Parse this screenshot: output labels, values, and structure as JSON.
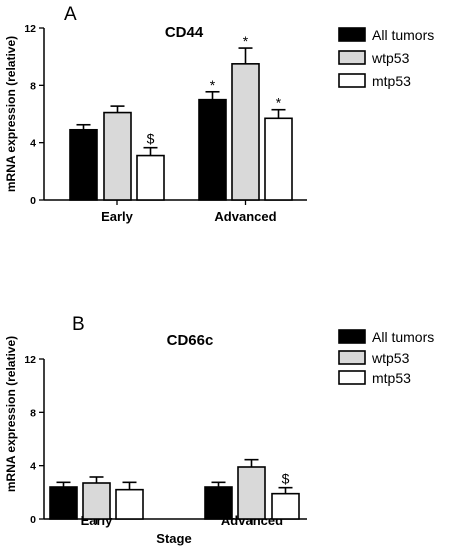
{
  "chart_data": [
    {
      "type": "bar",
      "panel": "A",
      "title": "CD44",
      "ylabel": "mRNA expression (relative)",
      "xlabel": "",
      "ylim": [
        0,
        12
      ],
      "yticks": [
        0,
        4,
        8,
        12
      ],
      "grid": false,
      "legend_position": "top-right",
      "categories": [
        "Early",
        "Advanced"
      ],
      "series": [
        {
          "name": "All tumors",
          "color": "#000000",
          "values": [
            4.9,
            7.0
          ],
          "errors": [
            0.35,
            0.55
          ],
          "annotations": [
            "",
            "*"
          ]
        },
        {
          "name": "wtp53",
          "color": "#d9d9d9",
          "values": [
            6.1,
            9.5
          ],
          "errors": [
            0.45,
            1.1
          ],
          "annotations": [
            "",
            "*"
          ]
        },
        {
          "name": "mtp53",
          "color": "#ffffff",
          "values": [
            3.1,
            5.7
          ],
          "errors": [
            0.55,
            0.6
          ],
          "annotations": [
            "$",
            "*"
          ]
        }
      ]
    },
    {
      "type": "bar",
      "panel": "B",
      "title": "CD66c",
      "ylabel": "mRNA expression (relative)",
      "xlabel": "Stage",
      "ylim": [
        0,
        12
      ],
      "yticks": [
        0,
        4,
        8,
        12
      ],
      "grid": false,
      "legend_position": "top-right",
      "categories": [
        "Early",
        "Advanced"
      ],
      "series": [
        {
          "name": "All tumors",
          "color": "#000000",
          "values": [
            2.4,
            2.4
          ],
          "errors": [
            0.35,
            0.35
          ],
          "annotations": [
            "",
            ""
          ]
        },
        {
          "name": "wtp53",
          "color": "#d9d9d9",
          "values": [
            2.7,
            3.9
          ],
          "errors": [
            0.45,
            0.55
          ],
          "annotations": [
            "",
            ""
          ]
        },
        {
          "name": "mtp53",
          "color": "#ffffff",
          "values": [
            2.2,
            1.9
          ],
          "errors": [
            0.55,
            0.45
          ],
          "annotations": [
            "",
            "$"
          ]
        }
      ]
    }
  ]
}
